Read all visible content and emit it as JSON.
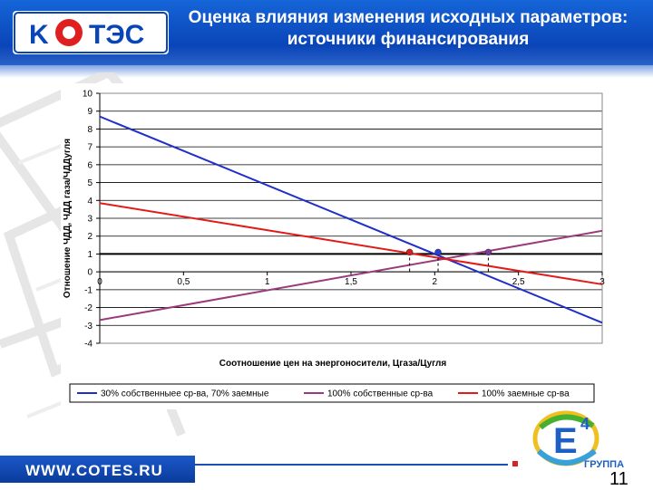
{
  "header": {
    "logo_text": "КОТЭС",
    "title_line1": "Оценка влияния изменения исходных параметров:",
    "title_line2": "источники финансирования"
  },
  "chart_data": {
    "type": "line",
    "xlabel": "Соотношение цен на энергоносители, Цгаза/Цугля",
    "ylabel": "Отношение ЧДД, ЧДД газа/ЧДДугля",
    "xlim": [
      0,
      3
    ],
    "ylim": [
      -4,
      10
    ],
    "x_ticks": [
      "0",
      "0,5",
      "1",
      "1,5",
      "2",
      "2,5",
      "3"
    ],
    "y_ticks": [
      "-4",
      "-3",
      "-2",
      "-1",
      "0",
      "1",
      "2",
      "3",
      "4",
      "5",
      "6",
      "7",
      "8",
      "9",
      "10"
    ],
    "grid": true,
    "legend_position": "bottom",
    "reference_line_y": 1,
    "series": [
      {
        "name": "30% собственныее ср-ва, 70% заемные",
        "color": "#1f2fc8",
        "x": [
          0,
          3
        ],
        "y": [
          8.7,
          -2.85
        ]
      },
      {
        "name": "100% собственные ср-ва",
        "color": "#9a3a7a",
        "x": [
          0,
          3
        ],
        "y": [
          -2.7,
          2.3
        ]
      },
      {
        "name": "100% заемные ср-ва",
        "color": "#e21a1a",
        "x": [
          0,
          3
        ],
        "y": [
          3.85,
          -0.7
        ]
      }
    ],
    "markers": [
      {
        "x": 1.85,
        "y": 1.1,
        "color": "#d42020"
      },
      {
        "x": 2.02,
        "y": 1.1,
        "color": "#2a3fcc"
      },
      {
        "x": 2.32,
        "y": 1.1,
        "color": "#7a3a9a"
      }
    ]
  },
  "footer": {
    "url": "WWW.COTES.RU",
    "group_logo_text": "ГРУППА",
    "group_logo_letter": "E",
    "group_logo_superscript": "4",
    "page_number": "11"
  }
}
